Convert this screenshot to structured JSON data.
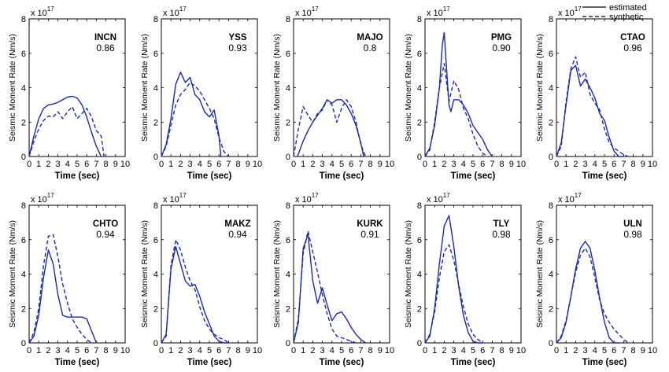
{
  "legend": {
    "estimated_label": "estimated",
    "synthetic_label": "synthetic",
    "estimated_style": "solid",
    "synthetic_style": "dashed",
    "color": "#1a2aa8",
    "position": "top-right"
  },
  "common": {
    "xlabel": "Time (sec)",
    "ylabel": "Seismic Moment Rate (Nm/s)",
    "multiplier_base": "x 10",
    "multiplier_exp": "17",
    "xlim": [
      0,
      10
    ],
    "ylim": [
      0,
      8
    ],
    "xticks": [
      "0",
      "1",
      "2",
      "3",
      "4",
      "5",
      "6",
      "7",
      "8",
      "9",
      "10"
    ],
    "yticks": [
      "0",
      "2",
      "4",
      "6",
      "8"
    ],
    "grid": false
  },
  "chart_data": [
    {
      "type": "line",
      "station": "INCN",
      "cc": "0.86",
      "series": [
        {
          "name": "estimated",
          "x": [
            0,
            0.5,
            1,
            1.5,
            2,
            2.5,
            3,
            3.5,
            4,
            4.5,
            5,
            5.5,
            6,
            6.5,
            7,
            7.5
          ],
          "y": [
            0,
            1.2,
            2.2,
            2.8,
            3,
            3.05,
            3.15,
            3.3,
            3.45,
            3.5,
            3.4,
            3,
            2.3,
            1.4,
            0.6,
            0
          ]
        },
        {
          "name": "synthetic",
          "x": [
            0,
            0.5,
            1,
            1.5,
            2,
            2.5,
            3,
            3.5,
            4,
            4.5,
            5,
            5.5,
            6,
            6.5,
            7,
            7.5,
            7.8
          ],
          "y": [
            0,
            0.9,
            1.6,
            2.1,
            2.35,
            2.3,
            2.6,
            2.2,
            2.6,
            2.9,
            2.2,
            2.5,
            2.8,
            2.3,
            1.5,
            1.2,
            0
          ]
        }
      ]
    },
    {
      "type": "line",
      "station": "YSS",
      "cc": "0.93",
      "series": [
        {
          "name": "estimated",
          "x": [
            0,
            0.5,
            1,
            1.5,
            2,
            2.5,
            3,
            3.5,
            4,
            4.5,
            5,
            5.5,
            6,
            6.2
          ],
          "y": [
            0,
            0.7,
            2.2,
            4.2,
            4.9,
            4.3,
            4.6,
            3.6,
            3.3,
            2.6,
            2.3,
            2.7,
            1.2,
            0
          ]
        },
        {
          "name": "synthetic",
          "x": [
            0,
            0.5,
            1,
            1.5,
            2,
            2.5,
            3,
            3.5,
            4,
            4.5,
            5,
            5.5,
            6,
            6.5,
            7
          ],
          "y": [
            0,
            0.6,
            1.8,
            3,
            3.6,
            3.9,
            4.3,
            4.1,
            3.8,
            3.3,
            2.8,
            2.2,
            1.1,
            0.3,
            0
          ]
        }
      ]
    },
    {
      "type": "line",
      "station": "MAJO",
      "cc": "0.8",
      "series": [
        {
          "name": "estimated",
          "x": [
            0.4,
            1,
            1.5,
            2,
            2.5,
            3,
            3.5,
            4,
            4.5,
            5,
            5.5,
            6,
            6.5,
            7,
            7.3
          ],
          "y": [
            0,
            0.9,
            1.5,
            2,
            2.4,
            2.8,
            3.3,
            3.1,
            3.3,
            3.3,
            3,
            2.5,
            1.8,
            0.8,
            0
          ]
        },
        {
          "name": "synthetic",
          "x": [
            0,
            0.5,
            1,
            1.5,
            2,
            2.5,
            3,
            3.5,
            4,
            4.5,
            5,
            5.5,
            6,
            6.5,
            7,
            7.5
          ],
          "y": [
            0,
            1.6,
            2.9,
            2.4,
            2,
            2.5,
            2.7,
            3.3,
            3,
            2,
            2.8,
            3.3,
            2.9,
            2,
            0.7,
            0
          ]
        }
      ]
    },
    {
      "type": "line",
      "station": "PMG",
      "cc": "0.90",
      "series": [
        {
          "name": "estimated",
          "x": [
            0,
            0.5,
            1,
            1.5,
            1.8,
            2,
            2.2,
            2.5,
            2.7,
            3,
            3.5,
            4,
            4.5,
            5,
            5.5,
            6,
            6.5,
            7
          ],
          "y": [
            0,
            0.5,
            1.8,
            4,
            6.5,
            7.2,
            5.5,
            3,
            2.6,
            3.3,
            3.3,
            3,
            2.5,
            1.8,
            1.4,
            1,
            0.4,
            0
          ]
        },
        {
          "name": "synthetic",
          "x": [
            0,
            0.5,
            1,
            1.5,
            2,
            2.5,
            3,
            3.5,
            4,
            4.5,
            5,
            5.5,
            6,
            6.5
          ],
          "y": [
            0,
            0.4,
            2,
            4,
            5.4,
            3.2,
            4.4,
            3.9,
            2.8,
            2.2,
            1.3,
            0.6,
            0.2,
            0
          ]
        }
      ]
    },
    {
      "type": "line",
      "station": "CTAO",
      "cc": "0.96",
      "series": [
        {
          "name": "estimated",
          "x": [
            0,
            0.5,
            1,
            1.5,
            2,
            2.5,
            3,
            3.5,
            4,
            4.5,
            5,
            5.5,
            6,
            6.5,
            7
          ],
          "y": [
            0,
            0.8,
            3,
            5,
            5.3,
            4.1,
            4.5,
            4,
            3.4,
            2.5,
            2.1,
            1.1,
            0.3,
            0,
            0
          ]
        },
        {
          "name": "synthetic",
          "x": [
            0,
            0.5,
            1,
            1.5,
            2,
            2.5,
            3,
            3.5,
            4,
            4.5,
            5,
            5.5,
            6,
            6.5,
            7,
            7.5
          ],
          "y": [
            0,
            0.6,
            3.2,
            5.1,
            5.8,
            4.6,
            4.9,
            3.6,
            3.1,
            2.7,
            1.6,
            0.8,
            0.5,
            0.3,
            0.1,
            0
          ]
        }
      ]
    },
    {
      "type": "line",
      "station": "CHTO",
      "cc": "0.94",
      "series": [
        {
          "name": "estimated",
          "x": [
            0,
            0.5,
            1,
            1.5,
            2,
            2.5,
            3,
            3.5,
            4,
            4.5,
            5,
            5.5,
            6,
            6.5,
            7
          ],
          "y": [
            0,
            0.4,
            1.6,
            3.8,
            5.4,
            4.6,
            2.8,
            1.6,
            1.5,
            1.5,
            1.5,
            1.5,
            1.4,
            0.7,
            0
          ]
        },
        {
          "name": "synthetic",
          "x": [
            0,
            0.5,
            1,
            1.5,
            2,
            2.5,
            3,
            3.5,
            4,
            4.5,
            5,
            5.5,
            6,
            6.5
          ],
          "y": [
            0,
            0.6,
            2,
            4.5,
            6.2,
            6.3,
            5,
            3.4,
            2.3,
            1.4,
            0.9,
            0.5,
            0.2,
            0
          ]
        }
      ]
    },
    {
      "type": "line",
      "station": "MAKZ",
      "cc": "0.94",
      "series": [
        {
          "name": "estimated",
          "x": [
            0,
            0.5,
            1,
            1.5,
            2,
            2.5,
            3,
            3.5,
            4,
            4.5,
            5,
            5.5,
            6,
            6.5,
            7
          ],
          "y": [
            0,
            0.5,
            4.3,
            5.6,
            4.6,
            3.6,
            3.3,
            3.4,
            2.7,
            1.8,
            1.1,
            0.4,
            0.1,
            0,
            0
          ]
        },
        {
          "name": "synthetic",
          "x": [
            0,
            0.5,
            1,
            1.5,
            2,
            2.5,
            3,
            3.5,
            4,
            4.5,
            5,
            5.5,
            6,
            6.5,
            7
          ],
          "y": [
            0,
            0.4,
            4.5,
            6,
            5.4,
            4.4,
            3.6,
            3.1,
            2.1,
            1.3,
            0.8,
            0.5,
            0.3,
            0.2,
            0
          ]
        }
      ]
    },
    {
      "type": "line",
      "station": "KURK",
      "cc": "0.91",
      "series": [
        {
          "name": "estimated",
          "x": [
            0,
            0.5,
            1,
            1.5,
            2,
            2.5,
            3,
            3.5,
            4,
            4.5,
            5,
            5.5,
            6,
            6.5,
            7,
            7.5
          ],
          "y": [
            0,
            1.2,
            5.5,
            6.3,
            3.6,
            2.3,
            3.2,
            2.2,
            1.3,
            1.7,
            1.8,
            1.4,
            0.9,
            0.5,
            0.2,
            0
          ]
        },
        {
          "name": "synthetic",
          "x": [
            0,
            0.5,
            1,
            1.5,
            2,
            2.5,
            3,
            3.5,
            4,
            4.5,
            5,
            5.5,
            6,
            6.5
          ],
          "y": [
            0,
            1.4,
            5.2,
            6.5,
            5.3,
            4.1,
            2.8,
            1.7,
            0.8,
            0.4,
            0.3,
            0.2,
            0.1,
            0
          ]
        }
      ]
    },
    {
      "type": "line",
      "station": "TLY",
      "cc": "0.98",
      "series": [
        {
          "name": "estimated",
          "x": [
            0,
            0.5,
            1,
            1.5,
            2,
            2.5,
            3,
            3.5,
            4,
            4.5,
            5,
            5.5,
            6
          ],
          "y": [
            0,
            0.4,
            2,
            4.6,
            6.8,
            7.4,
            5.6,
            3.3,
            1.6,
            0.6,
            0.1,
            0,
            0
          ]
        },
        {
          "name": "synthetic",
          "x": [
            0,
            0.5,
            1,
            1.5,
            2,
            2.5,
            3,
            3.5,
            4,
            4.5,
            5,
            5.5,
            6
          ],
          "y": [
            0,
            0.5,
            1.8,
            3.8,
            5.3,
            5.7,
            4.8,
            3.4,
            2.1,
            1.1,
            0.5,
            0.2,
            0
          ]
        }
      ]
    },
    {
      "type": "line",
      "station": "ULN",
      "cc": "0.98",
      "series": [
        {
          "name": "estimated",
          "x": [
            0,
            0.5,
            1,
            1.5,
            2,
            2.5,
            3,
            3.5,
            4,
            4.5,
            5,
            5.5,
            6,
            6.5
          ],
          "y": [
            0,
            0.3,
            1.2,
            2.7,
            4.3,
            5.5,
            5.9,
            5.5,
            4.2,
            2.6,
            1.2,
            0.3,
            0,
            0
          ]
        },
        {
          "name": "synthetic",
          "x": [
            0,
            0.5,
            1,
            1.5,
            2,
            2.5,
            3,
            3.5,
            4,
            4.5,
            5,
            5.5,
            6,
            6.5,
            7,
            7.5
          ],
          "y": [
            0,
            0.4,
            1.3,
            2.7,
            4.1,
            5.1,
            5.5,
            5,
            3.8,
            2.5,
            1.7,
            1.2,
            0.8,
            0.5,
            0.2,
            0
          ]
        }
      ]
    }
  ]
}
